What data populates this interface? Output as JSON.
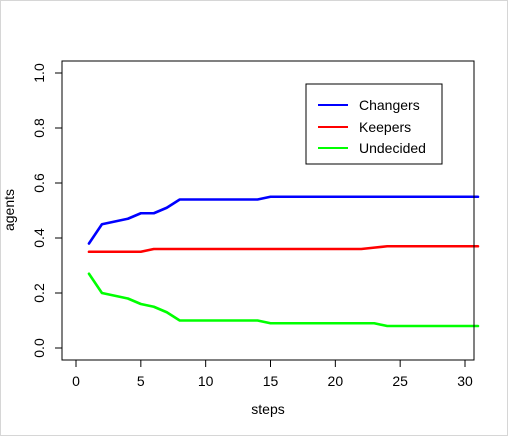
{
  "chart_data": {
    "type": "line",
    "title": "",
    "xlabel": "steps",
    "ylabel": "agents",
    "xlim": [
      0,
      31
    ],
    "ylim": [
      0,
      1.0
    ],
    "x_ticks": [
      "0",
      "5",
      "10",
      "15",
      "20",
      "25",
      "30"
    ],
    "y_ticks": [
      "0.0",
      "0.2",
      "0.4",
      "0.6",
      "0.8",
      "1.0"
    ],
    "grid": false,
    "legend_position": "top-right",
    "x": [
      1,
      2,
      3,
      4,
      5,
      6,
      7,
      8,
      9,
      10,
      11,
      12,
      13,
      14,
      15,
      16,
      17,
      18,
      19,
      20,
      21,
      22,
      23,
      24,
      25,
      26,
      27,
      28,
      29,
      30,
      31
    ],
    "series": [
      {
        "name": "Changers",
        "color": "#0000ff",
        "values": [
          0.38,
          0.45,
          0.46,
          0.47,
          0.49,
          0.49,
          0.51,
          0.54,
          0.54,
          0.54,
          0.54,
          0.54,
          0.54,
          0.54,
          0.55,
          0.55,
          0.55,
          0.55,
          0.55,
          0.55,
          0.55,
          0.55,
          0.55,
          0.55,
          0.55,
          0.55,
          0.55,
          0.55,
          0.55,
          0.55,
          0.55
        ]
      },
      {
        "name": "Keepers",
        "color": "#ff0000",
        "values": [
          0.35,
          0.35,
          0.35,
          0.35,
          0.35,
          0.36,
          0.36,
          0.36,
          0.36,
          0.36,
          0.36,
          0.36,
          0.36,
          0.36,
          0.36,
          0.36,
          0.36,
          0.36,
          0.36,
          0.36,
          0.36,
          0.36,
          0.365,
          0.37,
          0.37,
          0.37,
          0.37,
          0.37,
          0.37,
          0.37,
          0.37
        ]
      },
      {
        "name": "Undecided",
        "color": "#00ff00",
        "values": [
          0.27,
          0.2,
          0.19,
          0.18,
          0.16,
          0.15,
          0.13,
          0.1,
          0.1,
          0.1,
          0.1,
          0.1,
          0.1,
          0.1,
          0.09,
          0.09,
          0.09,
          0.09,
          0.09,
          0.09,
          0.09,
          0.09,
          0.09,
          0.08,
          0.08,
          0.08,
          0.08,
          0.08,
          0.08,
          0.08,
          0.08
        ]
      }
    ]
  }
}
